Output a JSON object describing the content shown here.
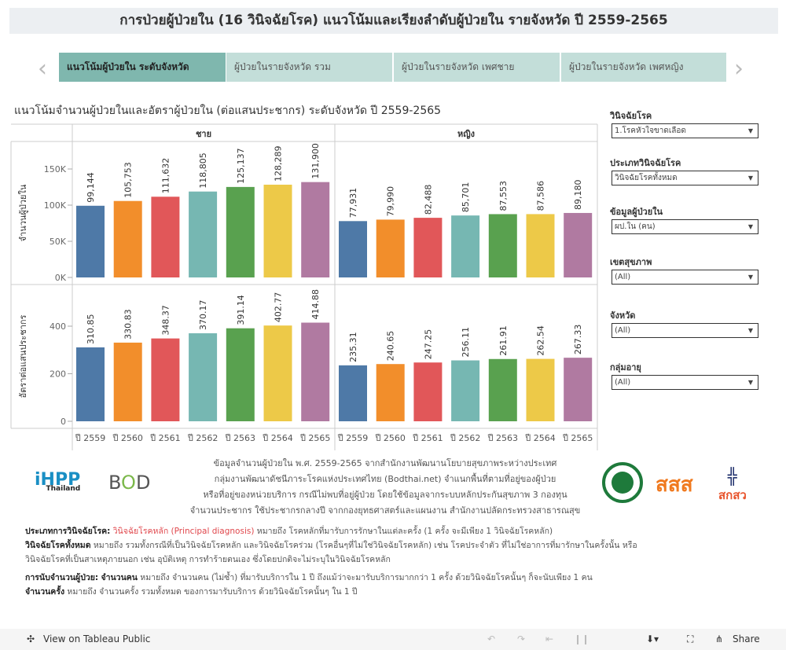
{
  "title": "การป่วยผู้ป่วยใน (16 วินิจฉัยโรค) แนวโน้มและเรียงลำดับผู้ป่วยใน รายจังหวัด ปี 2559-2565",
  "tabs": [
    "แนวโน้มผู้ป่วยใน ระดับจังหวัด",
    "ผู้ป่วยในรายจังหวัด รวม",
    "ผู้ป่วยในรายจังหวัด เพศชาย",
    "ผู้ป่วยในรายจังหวัด เพศหญิง"
  ],
  "nav": {
    "prev_icon": "chevron-left-icon",
    "next_icon": "chevron-right-icon"
  },
  "subtitle": "แนวโน้มจำนวนผู้ป่วยในและอัตราผู้ป่วยใน (ต่อแสนประชากร) ระดับจังหวัด ปี 2559-2565",
  "chart_data": {
    "type": "bar",
    "colors": [
      "#4e79a7",
      "#f28e2b",
      "#e15759",
      "#76b7b2",
      "#59a14f",
      "#edc948",
      "#b07aa1"
    ],
    "categories": [
      "ปี 2559",
      "ปี 2560",
      "ปี 2561",
      "ปี 2562",
      "ปี 2563",
      "ปี 2564",
      "ปี 2565"
    ],
    "panels": [
      "ชาย",
      "หญิง"
    ],
    "rows": [
      {
        "ylabel": "จำนวนผู้ป่วยใน",
        "ylim": [
          0,
          170000
        ],
        "ticks": [
          {
            "v": 0,
            "t": "0K"
          },
          {
            "v": 50000,
            "t": "50K"
          },
          {
            "v": 100000,
            "t": "100K"
          },
          {
            "v": 150000,
            "t": "150K"
          }
        ],
        "values": {
          "ชาย": [
            99144,
            105753,
            111632,
            118805,
            125137,
            128289,
            131900
          ],
          "หญิง": [
            77931,
            79990,
            82488,
            85701,
            87553,
            87586,
            89180
          ]
        },
        "labels": {
          "ชาย": [
            "99,144",
            "105,753",
            "111,632",
            "118,805",
            "125,137",
            "128,289",
            "131,900"
          ],
          "หญิง": [
            "77,931",
            "79,990",
            "82,488",
            "85,701",
            "87,553",
            "87,586",
            "89,180"
          ]
        }
      },
      {
        "ylabel": "อัตราต่อแสนประชากร",
        "ylim": [
          0,
          500
        ],
        "ticks": [
          {
            "v": 0,
            "t": "0"
          },
          {
            "v": 200,
            "t": "200"
          },
          {
            "v": 400,
            "t": "400"
          }
        ],
        "values": {
          "ชาย": [
            310.85,
            330.83,
            348.37,
            370.17,
            391.14,
            402.77,
            414.88
          ],
          "หญิง": [
            235.31,
            240.65,
            247.25,
            256.11,
            261.91,
            262.54,
            267.33
          ]
        },
        "labels": {
          "ชาย": [
            "310.85",
            "330.83",
            "348.37",
            "370.17",
            "391.14",
            "402.77",
            "414.88"
          ],
          "หญิง": [
            "235.31",
            "240.65",
            "247.25",
            "256.11",
            "261.91",
            "262.54",
            "267.33"
          ]
        }
      }
    ]
  },
  "filters": [
    {
      "label": "วินิจฉัยโรค",
      "value": "1.โรคหัวใจขาดเลือด"
    },
    {
      "label": "ประเภทวินิจฉัยโรค",
      "value": "วินิจฉัยโรคทั้งหมด"
    },
    {
      "label": "ข้อมูลผู้ป่วยใน",
      "value": "ผป.ใน (คน)"
    },
    {
      "label": "เขตสุขภาพ",
      "value": "(All)"
    },
    {
      "label": "จังหวัด",
      "value": "(All)"
    },
    {
      "label": "กลุ่มอายุ",
      "value": "(All)"
    }
  ],
  "note": [
    "ข้อมูลจำนวนผู้ป่วยใน พ.ศ. 2559-2565 จากสำนักงานพัฒนานโยบายสุขภาพระหว่างประเทศ",
    "กลุ่มงานพัฒนาดัชนีภาระโรคแห่งประเทศไทย (Bodthai.net) จำแนกพื้นที่ตามที่อยู่ของผู้ป่วย",
    "หรือที่อยู่ของหน่วยบริการ กรณีไม่พบที่อยู่ผู้ป่วย โดยใช้ข้อมูลจากระบบหลักประกันสุขภาพ 3 กองทุน",
    "จำนวนประชากร ใช้ประชากรกลางปี จากกองยุทธศาสตร์และแผนงาน สำนักงานปลัดกระทรวงสาธารณสุข"
  ],
  "logos": {
    "ihpp": "iHPP Thailand",
    "bod": "BOD",
    "bod_sub": "Burden of Disease Thailand",
    "thaihealth": "สสส",
    "nhso": "สกสว"
  },
  "definitions": {
    "l1_head": "ประเภทการวินิจฉัยโรค:",
    "l1_red": "วินิจฉัยโรคหลัก (Principal diagnosis)",
    "l1_rest": " หมายถึง โรคหลักที่มารับการรักษาในแต่ละครั้ง (1 ครั้ง จะมีเพียง 1 วินิจฉัยโรคหลัก)",
    "l2_red": "วินิจฉัยโรคทั้งหมด",
    "l2_rest": " หมายถึง รวมทั้งกรณีที่เป็นวินิจฉัยโรคหลัก และวินิจฉัยโรคร่วม (โรคอื่นๆที่ไม่ใช่วินิจฉัยโรคหลัก) เช่น โรคประจำตัว ที่ไม่ใช่อาการที่มารักษาในครั้งนั้น หรือ",
    "l3": "วินิจฉัยโรคที่เป็นสาเหตุภายนอก เช่น อุบัติเหตุ การทำร้ายตนเอง ซึ่งโดยปกติจะไม่ระบุในวินิจฉัยโรคหลัก",
    "l4_head": "การนับจำนวนผู้ป่วย:",
    "l4_red": "จำนวนคน",
    "l4_rest": " หมายถึง จำนวนคน (ไม่ซ้ำ) ที่มารับบริการใน 1 ปี ถึงแม้ว่าจะมารับบริการมากกว่า 1 ครั้ง ด้วยวินิจฉัยโรคนั้นๆ ก็จะนับเพียง 1 คน",
    "l5_red": "จำนวนครั้ง",
    "l5_rest": " หมายถึง จำนวนครั้ง รวมทั้งหมด ของการมารับบริการ ด้วยวินิจฉัยโรคนั้นๆ ใน 1 ปี"
  },
  "footer": {
    "view": "View on Tableau Public",
    "share": "Share"
  }
}
